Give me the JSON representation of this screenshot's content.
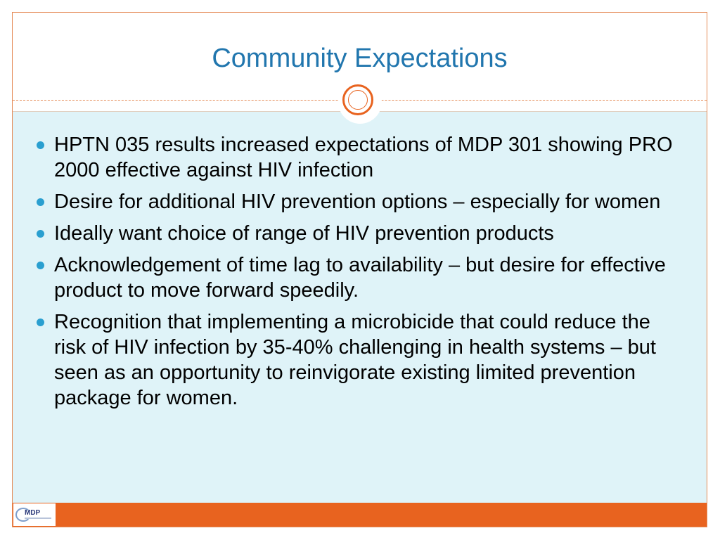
{
  "slide": {
    "title": "Community Expectations",
    "bullets": [
      "HPTN 035 results increased expectations of MDP 301 showing PRO 2000 effective against HIV infection",
      "Desire for additional HIV prevention options – especially for women",
      "Ideally want choice of range of HIV prevention products",
      "Acknowledgement of time lag to availability – but desire for effective product to move forward speedily.",
      "Recognition that implementing a microbicide that could reduce the risk of HIV infection by 35-40% challenging in health systems – but seen as an opportunity to reinvigorate existing limited prevention package for women."
    ],
    "logo_text": "MDP"
  },
  "colors": {
    "title": "#2176ae",
    "accent": "#e8631f",
    "content_bg": "#dff3f8",
    "bullet": "#2a9fd0"
  }
}
